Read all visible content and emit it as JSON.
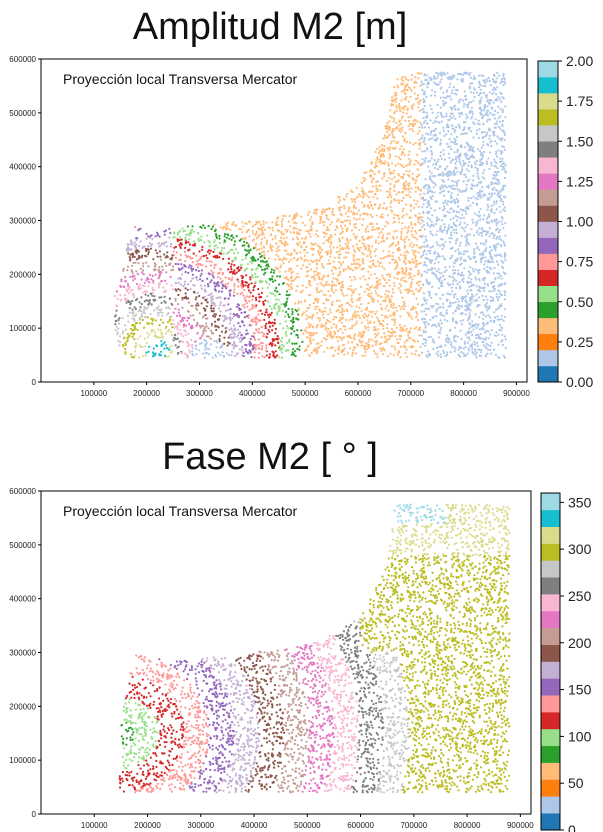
{
  "chart_data": [
    {
      "type": "scatter",
      "title": "Amplitud M2 [m]",
      "annotation": "Proyección local Transversa Mercator",
      "xlim": [
        0,
        920000
      ],
      "ylim": [
        0,
        600000
      ],
      "x_ticks": [
        100000,
        200000,
        300000,
        400000,
        500000,
        600000,
        700000,
        800000,
        900000
      ],
      "y_ticks": [
        0,
        100000,
        200000,
        300000,
        400000,
        500000,
        600000
      ],
      "colorbar": {
        "range": [
          0.0,
          2.0
        ],
        "ticks": [
          0.0,
          0.25,
          0.5,
          0.75,
          1.0,
          1.25,
          1.5,
          1.75,
          2.0
        ],
        "tick_labels": [
          "0.00",
          "0.25",
          "0.50",
          "0.75",
          "1.00",
          "1.25",
          "1.50",
          "1.75",
          "2.00"
        ],
        "colormap": "tab20"
      },
      "domain_outline": [
        [
          160000,
          45000
        ],
        [
          880000,
          45000
        ],
        [
          880000,
          575000
        ],
        [
          690000,
          575000
        ],
        [
          665000,
          555000
        ],
        [
          650000,
          460000
        ],
        [
          600000,
          365000
        ],
        [
          520000,
          320000
        ],
        [
          400000,
          300000
        ],
        [
          270000,
          290000
        ],
        [
          200000,
          280000
        ],
        [
          170000,
          295000
        ],
        [
          185000,
          280000
        ],
        [
          165000,
          260000
        ],
        [
          140000,
          160000
        ],
        [
          140000,
          90000
        ],
        [
          150000,
          55000
        ]
      ]
    },
    {
      "type": "scatter",
      "title": "Fase M2 [ ° ]",
      "annotation": "Proyección local Transversa Mercator",
      "xlim": [
        0,
        920000
      ],
      "ylim": [
        0,
        600000
      ],
      "x_ticks": [
        100000,
        200000,
        300000,
        400000,
        500000,
        600000,
        700000,
        800000,
        900000
      ],
      "y_ticks": [
        0,
        100000,
        200000,
        300000,
        400000,
        500000,
        600000
      ],
      "colorbar": {
        "range": [
          0,
          360
        ],
        "ticks": [
          0,
          50,
          100,
          150,
          200,
          250,
          300,
          350
        ],
        "tick_labels": [
          "0",
          "50",
          "100",
          "150",
          "200",
          "250",
          "300",
          "350"
        ],
        "colormap": "tab20"
      },
      "domain_outline": [
        [
          140000,
          40000
        ],
        [
          880000,
          40000
        ],
        [
          880000,
          575000
        ],
        [
          700000,
          575000
        ],
        [
          665000,
          580000
        ],
        [
          650000,
          460000
        ],
        [
          600000,
          365000
        ],
        [
          520000,
          320000
        ],
        [
          400000,
          300000
        ],
        [
          270000,
          285000
        ],
        [
          200000,
          290000
        ],
        [
          170000,
          300000
        ],
        [
          185000,
          280000
        ],
        [
          165000,
          260000
        ],
        [
          150000,
          160000
        ],
        [
          150000,
          90000
        ],
        [
          145000,
          50000
        ]
      ]
    }
  ],
  "colors": {
    "tab20": [
      "#1f77b4",
      "#aec7e8",
      "#ff7f0e",
      "#ffbb78",
      "#2ca02c",
      "#98df8a",
      "#d62728",
      "#ff9896",
      "#9467bd",
      "#c5b0d5",
      "#8c564b",
      "#c49c94",
      "#e377c2",
      "#f7b6d2",
      "#7f7f7f",
      "#c7c7c7",
      "#bcbd22",
      "#dbdb8d",
      "#17becf",
      "#9edae5"
    ]
  }
}
